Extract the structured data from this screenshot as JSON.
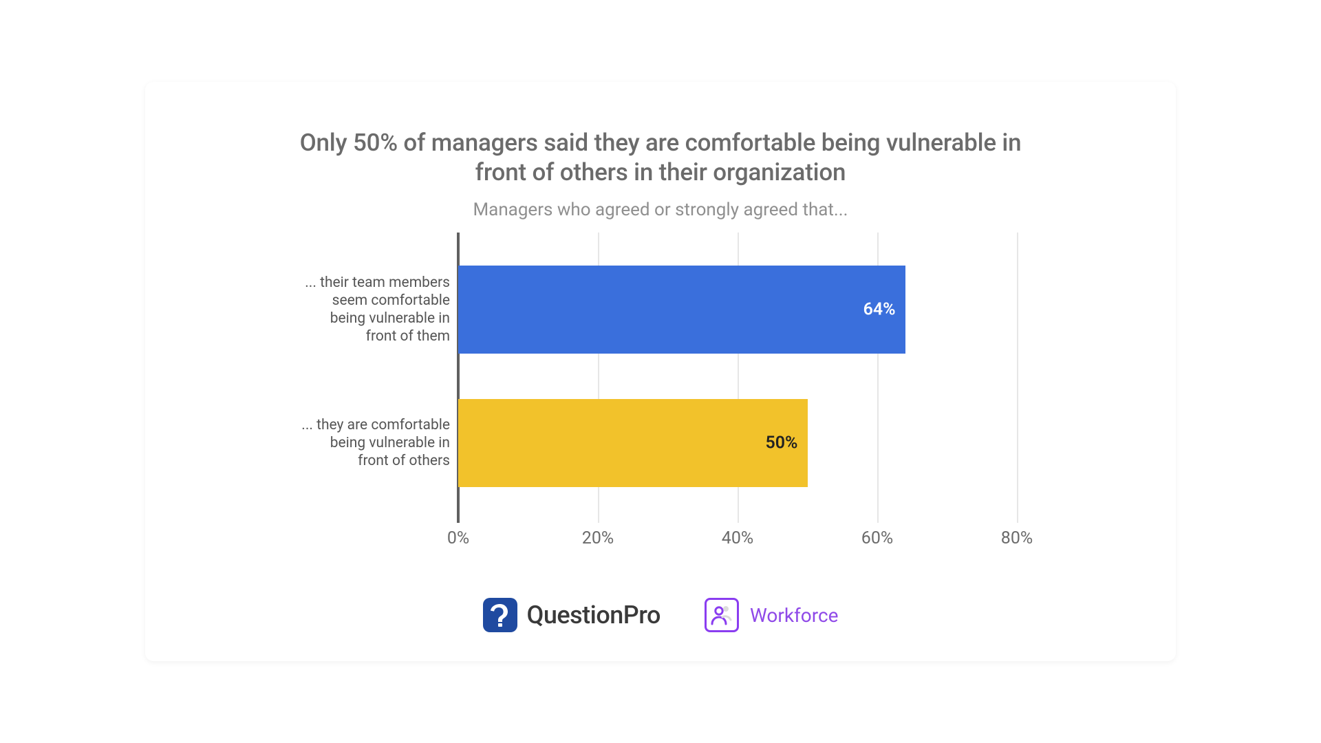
{
  "title": "Only 50% of managers said they are comfortable being vulnerable in front of others in their organization",
  "subtitle": "Managers who agreed or strongly agreed that...",
  "chart": {
    "type": "bar-horizontal",
    "xmin": 0,
    "xmax": 80,
    "xtick_step": 20,
    "xtick_labels": [
      "0%",
      "20%",
      "40%",
      "60%",
      "80%"
    ],
    "grid_color": "#e6e6e6",
    "axis_color": "#606060",
    "background_color": "#ffffff",
    "tick_font_color": "#6b6b6b",
    "tick_fontsize": 25,
    "cat_font_color": "#555555",
    "cat_fontsize": 21,
    "bars": [
      {
        "category": "... their team members seem comfortable being vulnerable in front of them",
        "value": 64,
        "value_label": "64%",
        "bar_color": "#3a6fdc",
        "label_color": "#ffffff",
        "label_inside": true
      },
      {
        "category": "... they are comfortable being vulnerable in front of others",
        "value": 50,
        "value_label": "50%",
        "bar_color": "#f2c22b",
        "label_color": "#222222",
        "label_inside": true
      }
    ]
  },
  "footer": {
    "brand1": "QuestionPro",
    "brand1_badge_bg": "#1f4aa0",
    "brand1_badge_fg": "#ffffff",
    "brand2": "Workforce",
    "brand2_color": "#8f49e8",
    "brand2_border": "#8a3df0"
  }
}
